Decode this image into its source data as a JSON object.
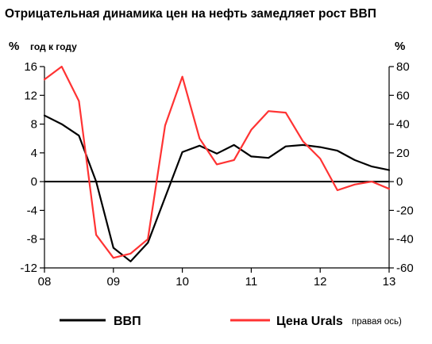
{
  "chart_data": {
    "type": "line",
    "title": "Отрицательная динамика цен на нефть замедляет рост ВВП",
    "left_axis": {
      "unit": "%",
      "sublabel": "год к году",
      "ylim": [
        -12,
        16
      ],
      "ticks": [
        "16",
        "12",
        "8",
        "4",
        "0",
        "-4",
        "-8",
        "-12"
      ]
    },
    "right_axis": {
      "unit": "%",
      "ylim": [
        -60,
        80
      ],
      "ticks": [
        "80",
        "60",
        "40",
        "20",
        "0",
        "-20",
        "-40",
        "-60"
      ]
    },
    "x_axis": {
      "range": [
        2008.0,
        2013.0
      ],
      "ticks": [
        {
          "value": 2008.0,
          "label": "08"
        },
        {
          "value": 2009.0,
          "label": "09"
        },
        {
          "value": 2010.0,
          "label": "10"
        },
        {
          "value": 2011.0,
          "label": "11"
        },
        {
          "value": 2012.0,
          "label": "12"
        },
        {
          "value": 2013.0,
          "label": "13"
        }
      ]
    },
    "series": [
      {
        "name": "ВВП",
        "axis": "left",
        "color": "#000000",
        "x": [
          2008.0,
          2008.25,
          2008.5,
          2008.75,
          2009.0,
          2009.25,
          2009.5,
          2009.75,
          2010.0,
          2010.25,
          2010.5,
          2010.75,
          2011.0,
          2011.25,
          2011.5,
          2011.75,
          2012.0,
          2012.25,
          2012.5,
          2012.75,
          2013.0
        ],
        "y": [
          9.2,
          8.0,
          6.4,
          0.0,
          -9.2,
          -11.1,
          -8.5,
          -2.2,
          4.1,
          5.0,
          3.9,
          5.1,
          3.5,
          3.3,
          4.9,
          5.1,
          4.8,
          4.3,
          3.0,
          2.1,
          1.6
        ]
      },
      {
        "name": "Цена Urals",
        "name_note": "правая ось)",
        "axis": "right",
        "color": "#ff3333",
        "x": [
          2008.0,
          2008.25,
          2008.5,
          2008.75,
          2009.0,
          2009.25,
          2009.5,
          2009.75,
          2010.0,
          2010.25,
          2010.5,
          2010.75,
          2011.0,
          2011.25,
          2011.5,
          2011.75,
          2012.0,
          2012.25,
          2012.5,
          2012.75,
          2013.0
        ],
        "y": [
          71,
          80,
          56,
          -37,
          -53,
          -50,
          -40,
          39,
          73,
          30,
          12,
          15,
          36,
          49,
          48,
          28,
          16,
          -6,
          -2,
          0,
          -5
        ]
      }
    ],
    "zero_line": true,
    "grid": false,
    "legend_position": "bottom"
  }
}
